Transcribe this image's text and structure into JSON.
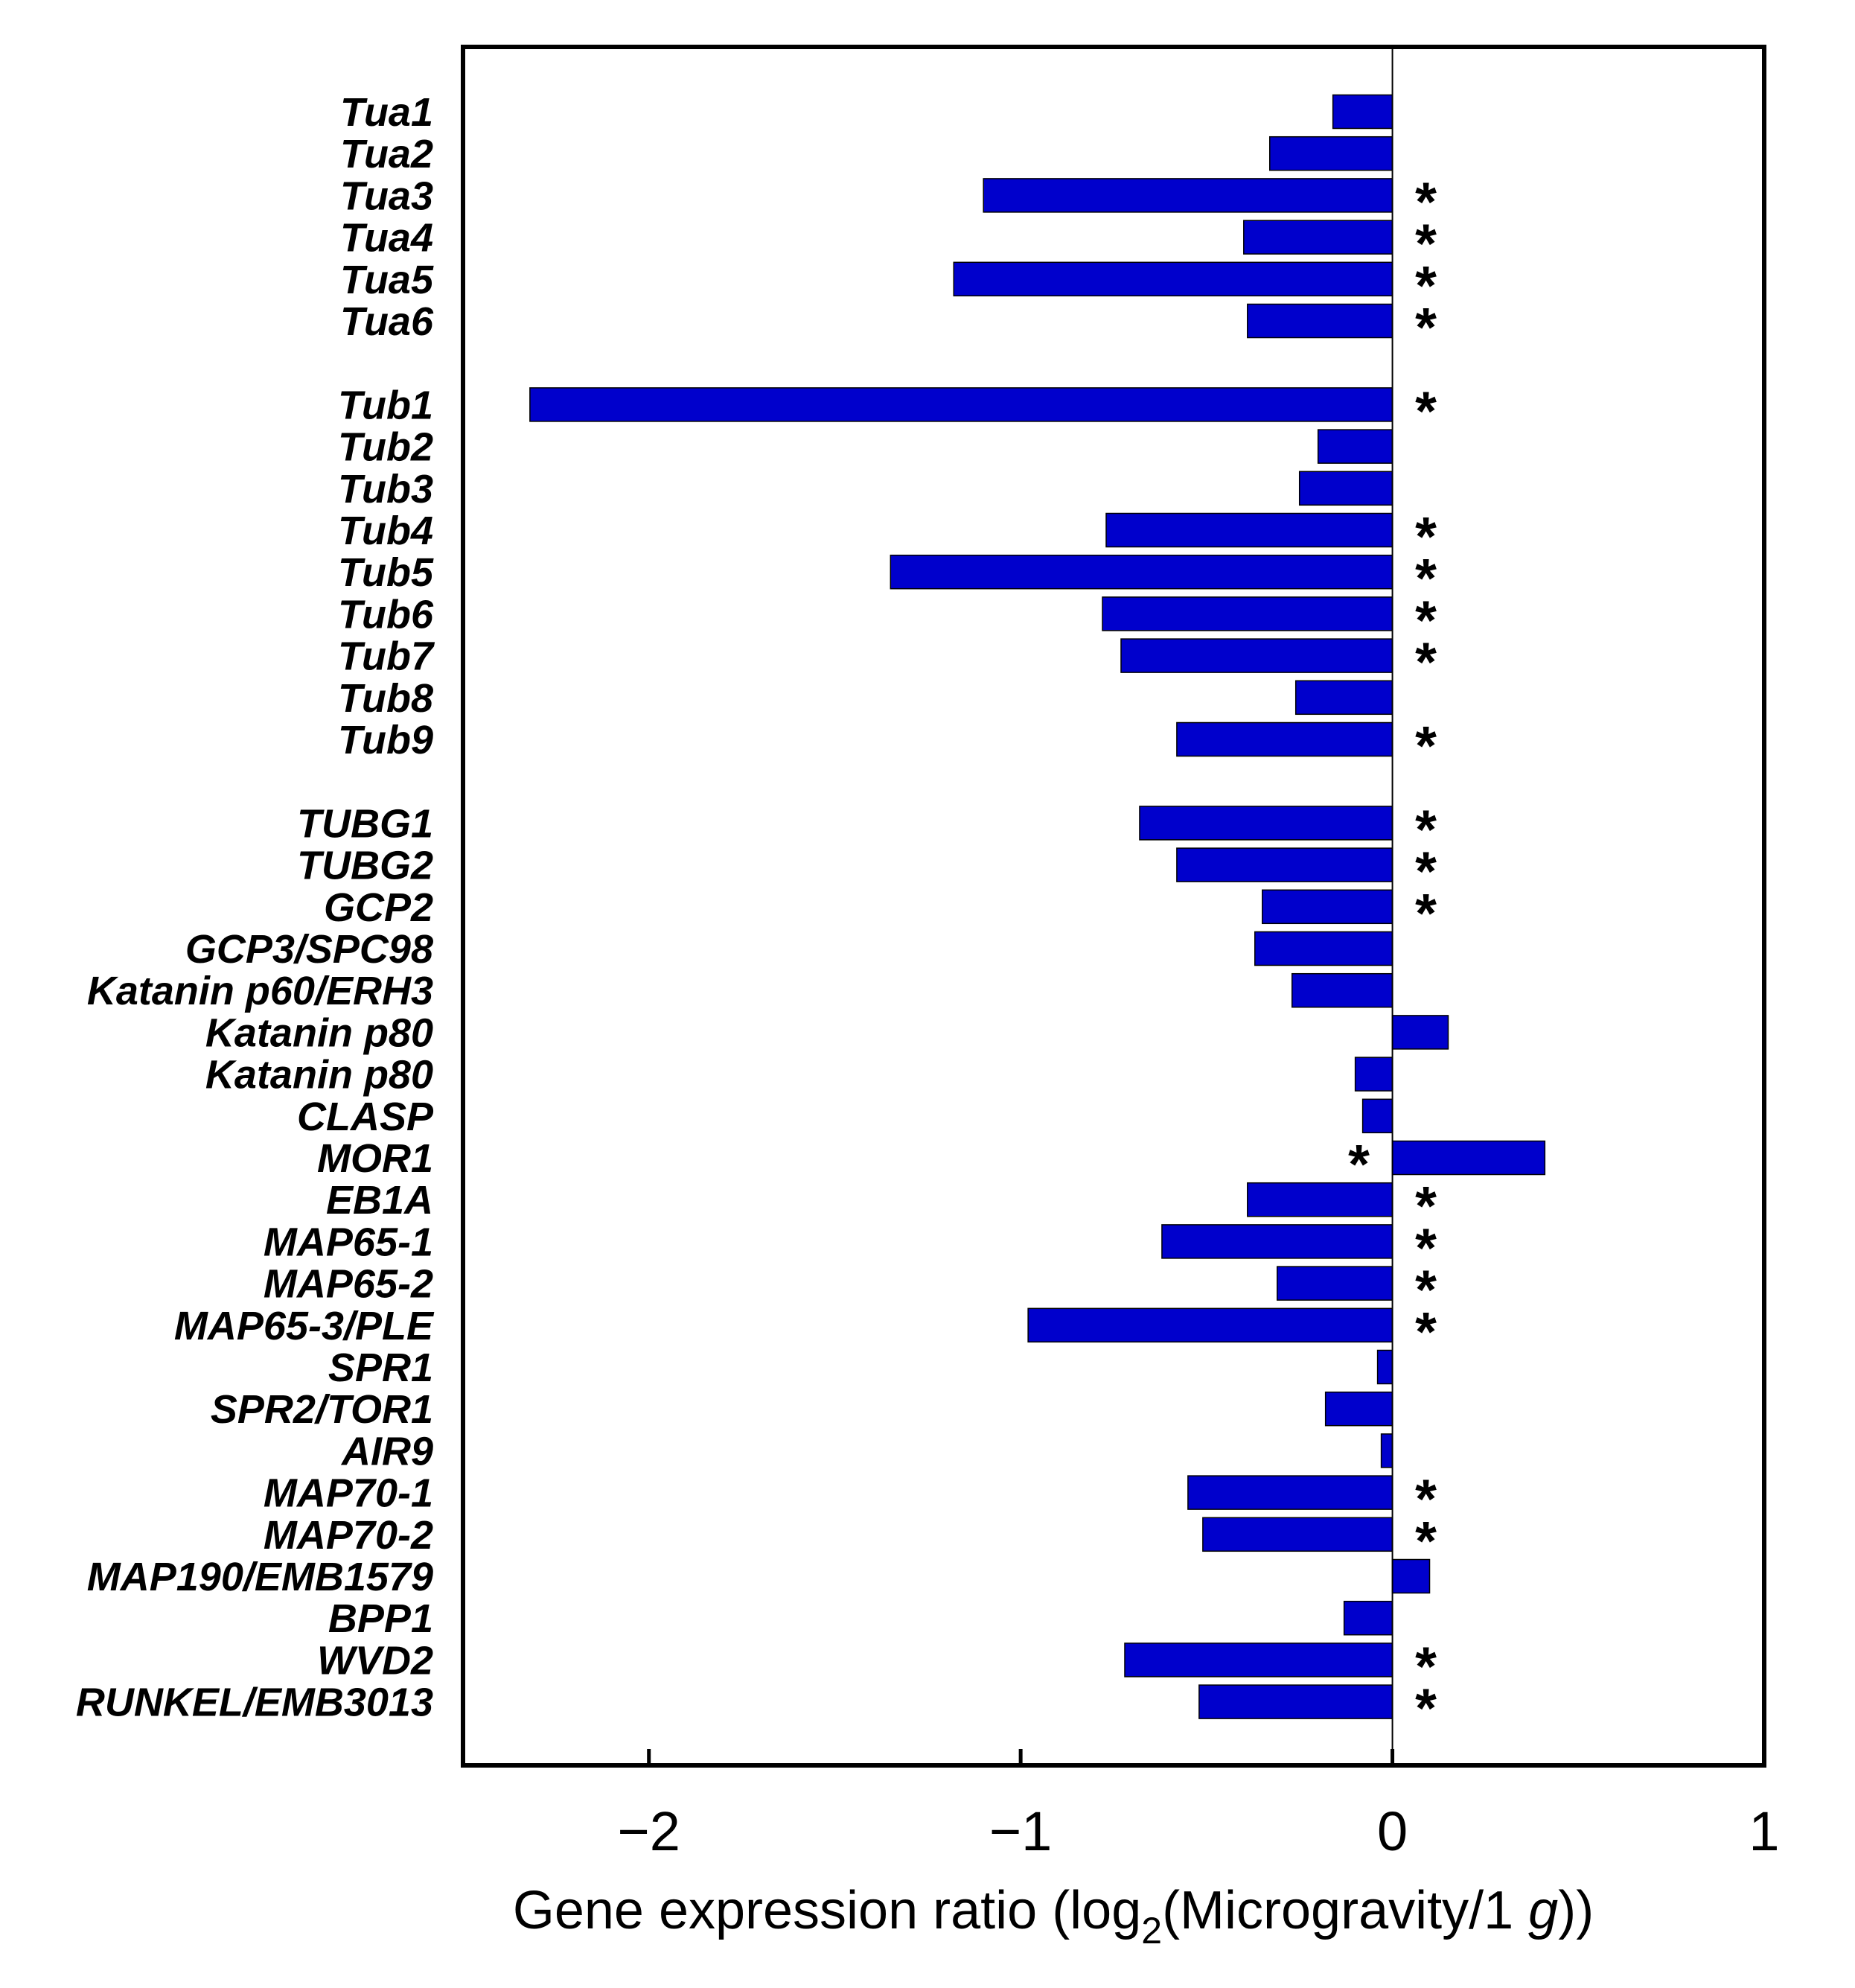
{
  "chart_data": {
    "type": "bar",
    "orientation": "horizontal",
    "title": "",
    "xlabel": {
      "prefix": "Gene expression ratio (log",
      "subscript": "2",
      "middle": "(Microgravity/1 ",
      "italic": "g",
      "suffix": "))"
    },
    "xlim": [
      -2.5,
      1
    ],
    "xticks": [
      -2,
      -1,
      0,
      1
    ],
    "xtick_labels": [
      "−2",
      "−1",
      "0",
      "1"
    ],
    "bar_color": "#0000cc",
    "group_gaps_after": [
      5,
      14
    ],
    "genes": [
      {
        "name": "Tua1",
        "value": -0.16,
        "significant": false
      },
      {
        "name": "Tua2",
        "value": -0.33,
        "significant": false
      },
      {
        "name": "Tua3",
        "value": -1.1,
        "significant": true
      },
      {
        "name": "Tua4",
        "value": -0.4,
        "significant": true
      },
      {
        "name": "Tua5",
        "value": -1.18,
        "significant": true
      },
      {
        "name": "Tua6",
        "value": -0.39,
        "significant": true
      },
      {
        "name": "Tub1",
        "value": -2.32,
        "significant": true
      },
      {
        "name": "Tub2",
        "value": -0.2,
        "significant": false
      },
      {
        "name": "Tub3",
        "value": -0.25,
        "significant": false
      },
      {
        "name": "Tub4",
        "value": -0.77,
        "significant": true
      },
      {
        "name": "Tub5",
        "value": -1.35,
        "significant": true
      },
      {
        "name": "Tub6",
        "value": -0.78,
        "significant": true
      },
      {
        "name": "Tub7",
        "value": -0.73,
        "significant": true
      },
      {
        "name": "Tub8",
        "value": -0.26,
        "significant": false
      },
      {
        "name": "Tub9",
        "value": -0.58,
        "significant": true
      },
      {
        "name": "TUBG1",
        "value": -0.68,
        "significant": true
      },
      {
        "name": "TUBG2",
        "value": -0.58,
        "significant": true
      },
      {
        "name": "GCP2",
        "value": -0.35,
        "significant": true
      },
      {
        "name": "GCP3/SPC98",
        "value": -0.37,
        "significant": false
      },
      {
        "name": "Katanin p60/ERH3",
        "value": -0.27,
        "significant": false
      },
      {
        "name": "Katanin p80",
        "value": 0.15,
        "significant": false
      },
      {
        "name": "Katanin p80",
        "value": -0.1,
        "significant": false
      },
      {
        "name": "CLASP",
        "value": -0.08,
        "significant": false
      },
      {
        "name": "MOR1",
        "value": 0.41,
        "significant": true,
        "star_side": "left"
      },
      {
        "name": "EB1A",
        "value": -0.39,
        "significant": true
      },
      {
        "name": "MAP65-1",
        "value": -0.62,
        "significant": true
      },
      {
        "name": "MAP65-2",
        "value": -0.31,
        "significant": true
      },
      {
        "name": "MAP65-3/PLE",
        "value": -0.98,
        "significant": true
      },
      {
        "name": "SPR1",
        "value": -0.04,
        "significant": false
      },
      {
        "name": "SPR2/TOR1",
        "value": -0.18,
        "significant": false
      },
      {
        "name": "AIR9",
        "value": -0.03,
        "significant": false
      },
      {
        "name": "MAP70-1",
        "value": -0.55,
        "significant": true
      },
      {
        "name": "MAP70-2",
        "value": -0.51,
        "significant": true
      },
      {
        "name": "MAP190/EMB1579",
        "value": 0.1,
        "significant": false
      },
      {
        "name": "BPP1",
        "value": -0.13,
        "significant": false
      },
      {
        "name": "WVD2",
        "value": -0.72,
        "significant": true
      },
      {
        "name": "RUNKEL/EMB3013",
        "value": -0.52,
        "significant": true
      }
    ]
  }
}
